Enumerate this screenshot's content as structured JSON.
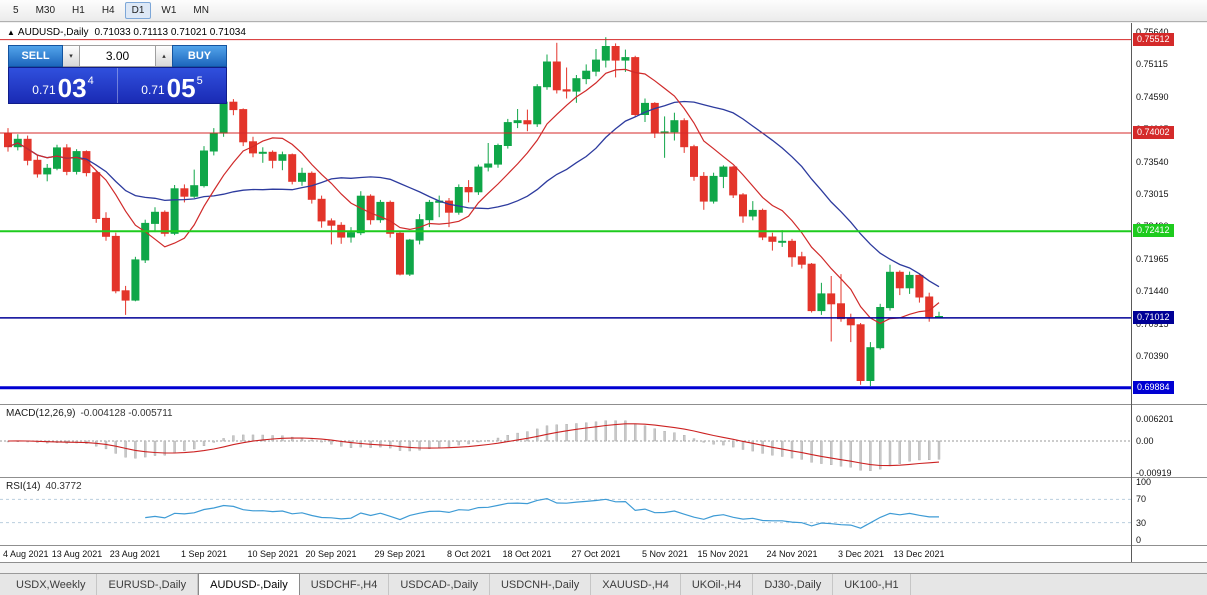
{
  "toolbar": {
    "timeframes": [
      "5",
      "M30",
      "H1",
      "H4",
      "D1",
      "W1",
      "MN"
    ],
    "active": "D1"
  },
  "chart": {
    "symbol_title": "AUDUSD-,Daily",
    "ohlc": "0.71033 0.71113 0.71021 0.71034"
  },
  "icons": {
    "collapse": "▲",
    "step_down": "▾",
    "step_up": "▴"
  },
  "one_click": {
    "sell_label": "SELL",
    "buy_label": "BUY",
    "volume": "3.00",
    "sell_price": {
      "small": "0.71",
      "big": "03",
      "sup": "4"
    },
    "buy_price": {
      "small": "0.71",
      "big": "05",
      "sup": "5"
    }
  },
  "y_axis_labels": [
    "0.75640",
    "0.75115",
    "0.74590",
    "0.74065",
    "0.73540",
    "0.73015",
    "0.72490",
    "0.71965",
    "0.71440",
    "0.70915",
    "0.70390",
    "0.69865"
  ],
  "price_levels": [
    {
      "value": 0.75512,
      "label": "0.75512",
      "color": "#d42a2a",
      "width": 1
    },
    {
      "value": 0.74002,
      "label": "0.74002",
      "color": "#d42a2a",
      "width": 1
    },
    {
      "value": 0.72412,
      "label": "0.72412",
      "color": "#1ecb1e",
      "width": 2
    },
    {
      "value": 0.71012,
      "label": "0.71012",
      "color": "#000096",
      "width": 1.5
    },
    {
      "value": 0.69884,
      "label": "0.69884",
      "color": "#0000d2",
      "width": 3
    }
  ],
  "macd": {
    "name": "MACD(12,26,9)",
    "values": "-0.004128 -0.005711",
    "axis": [
      {
        "label": "0.006201",
        "value": 0.006201
      },
      {
        "label": "0.00",
        "value": 0
      },
      {
        "label": "-0.00919",
        "value": -0.00919
      }
    ]
  },
  "rsi": {
    "name": "RSI(14)",
    "value": "40.3772",
    "axis": [
      {
        "label": "100",
        "value": 100
      },
      {
        "label": "70",
        "value": 70
      },
      {
        "label": "30",
        "value": 30
      },
      {
        "label": "0",
        "value": 0
      }
    ],
    "levels": [
      70,
      30
    ]
  },
  "x_ticks": [
    {
      "label": "4 Aug 2021",
      "index": 0
    },
    {
      "label": "13 Aug 2021",
      "index": 7
    },
    {
      "label": "23 Aug 2021",
      "index": 13
    },
    {
      "label": "1 Sep 2021",
      "index": 20
    },
    {
      "label": "10 Sep 2021",
      "index": 27
    },
    {
      "label": "20 Sep 2021",
      "index": 33
    },
    {
      "label": "29 Sep 2021",
      "index": 40
    },
    {
      "label": "8 Oct 2021",
      "index": 47
    },
    {
      "label": "18 Oct 2021",
      "index": 53
    },
    {
      "label": "27 Oct 2021",
      "index": 60
    },
    {
      "label": "5 Nov 2021",
      "index": 67
    },
    {
      "label": "15 Nov 2021",
      "index": 73
    },
    {
      "label": "24 Nov 2021",
      "index": 80
    },
    {
      "label": "3 Dec 2021",
      "index": 87
    },
    {
      "label": "13 Dec 2021",
      "index": 93
    }
  ],
  "tabs": [
    {
      "label": "USDX,Weekly",
      "active": false
    },
    {
      "label": "EURUSD-,Daily",
      "active": false
    },
    {
      "label": "AUDUSD-,Daily",
      "active": true
    },
    {
      "label": "USDCHF-,H4",
      "active": false
    },
    {
      "label": "USDCAD-,Daily",
      "active": false
    },
    {
      "label": "USDCNH-,Daily",
      "active": false
    },
    {
      "label": "XAUUSD-,H4",
      "active": false
    },
    {
      "label": "UKOil-,H4",
      "active": false
    },
    {
      "label": "DJ30-,Daily",
      "active": false
    },
    {
      "label": "UK100-,H1",
      "active": false
    }
  ],
  "colors": {
    "up": "#0fa648",
    "down": "#e3342a",
    "ma_fast": "#d02a2a",
    "ma_slow": "#2d3b9e",
    "macd_hist": "#c8c8c8",
    "macd_signal": "#cc2222",
    "rsi_line": "#3e9bd5"
  },
  "chart_data": {
    "type": "candlestick",
    "symbol": "AUDUSD",
    "timeframe": "Daily",
    "price_min_visible": 0.6962,
    "price_max_visible": 0.7578,
    "candles": [
      [
        0.74,
        0.7408,
        0.737,
        0.7378
      ],
      [
        0.7378,
        0.7398,
        0.7372,
        0.739
      ],
      [
        0.739,
        0.7396,
        0.7348,
        0.7356
      ],
      [
        0.7356,
        0.7364,
        0.7328,
        0.7334
      ],
      [
        0.7334,
        0.735,
        0.7322,
        0.7343
      ],
      [
        0.7343,
        0.7381,
        0.734,
        0.7376
      ],
      [
        0.7376,
        0.7382,
        0.7332,
        0.7338
      ],
      [
        0.7338,
        0.7374,
        0.7333,
        0.737
      ],
      [
        0.737,
        0.7372,
        0.733,
        0.7336
      ],
      [
        0.7336,
        0.734,
        0.7255,
        0.7262
      ],
      [
        0.7262,
        0.7272,
        0.7226,
        0.7233
      ],
      [
        0.7233,
        0.7239,
        0.7141,
        0.7145
      ],
      [
        0.7145,
        0.7153,
        0.7106,
        0.713
      ],
      [
        0.713,
        0.72,
        0.7128,
        0.7195
      ],
      [
        0.7195,
        0.726,
        0.719,
        0.7254
      ],
      [
        0.7254,
        0.728,
        0.724,
        0.7272
      ],
      [
        0.7272,
        0.7275,
        0.7233,
        0.7238
      ],
      [
        0.7238,
        0.7316,
        0.7235,
        0.731
      ],
      [
        0.731,
        0.7317,
        0.7288,
        0.7298
      ],
      [
        0.7298,
        0.7341,
        0.7295,
        0.7315
      ],
      [
        0.7315,
        0.7379,
        0.7312,
        0.7371
      ],
      [
        0.7371,
        0.7408,
        0.7364,
        0.74
      ],
      [
        0.74,
        0.7478,
        0.7394,
        0.745
      ],
      [
        0.745,
        0.7455,
        0.7429,
        0.7438
      ],
      [
        0.7438,
        0.744,
        0.7379,
        0.7386
      ],
      [
        0.7386,
        0.7394,
        0.7361,
        0.7368
      ],
      [
        0.7368,
        0.7377,
        0.7352,
        0.7369
      ],
      [
        0.7369,
        0.7372,
        0.7343,
        0.7356
      ],
      [
        0.7356,
        0.737,
        0.734,
        0.7365
      ],
      [
        0.7365,
        0.7367,
        0.7317,
        0.7322
      ],
      [
        0.7322,
        0.7344,
        0.7315,
        0.7335
      ],
      [
        0.7335,
        0.7338,
        0.7286,
        0.7293
      ],
      [
        0.7293,
        0.7299,
        0.7247,
        0.7258
      ],
      [
        0.7258,
        0.7262,
        0.722,
        0.7251
      ],
      [
        0.7251,
        0.7256,
        0.7221,
        0.7232
      ],
      [
        0.7232,
        0.7248,
        0.7223,
        0.7239
      ],
      [
        0.7239,
        0.7306,
        0.7235,
        0.7298
      ],
      [
        0.7298,
        0.7301,
        0.7252,
        0.726
      ],
      [
        0.726,
        0.7292,
        0.7255,
        0.7288
      ],
      [
        0.7288,
        0.7291,
        0.7231,
        0.7238
      ],
      [
        0.7238,
        0.7242,
        0.717,
        0.7172
      ],
      [
        0.7172,
        0.7229,
        0.7169,
        0.7227
      ],
      [
        0.7227,
        0.7269,
        0.722,
        0.726
      ],
      [
        0.726,
        0.7292,
        0.7248,
        0.7288
      ],
      [
        0.7288,
        0.7299,
        0.7264,
        0.729
      ],
      [
        0.729,
        0.7295,
        0.7248,
        0.7272
      ],
      [
        0.7272,
        0.7317,
        0.7268,
        0.7312
      ],
      [
        0.7312,
        0.7324,
        0.7288,
        0.7305
      ],
      [
        0.7305,
        0.7349,
        0.73,
        0.7345
      ],
      [
        0.7345,
        0.7384,
        0.7338,
        0.735
      ],
      [
        0.735,
        0.7383,
        0.7344,
        0.738
      ],
      [
        0.738,
        0.7423,
        0.7375,
        0.7417
      ],
      [
        0.7417,
        0.7439,
        0.7408,
        0.742
      ],
      [
        0.742,
        0.7438,
        0.7403,
        0.7415
      ],
      [
        0.7415,
        0.7479,
        0.741,
        0.7475
      ],
      [
        0.7475,
        0.7527,
        0.747,
        0.7515
      ],
      [
        0.7515,
        0.7546,
        0.7464,
        0.747
      ],
      [
        0.747,
        0.7506,
        0.7456,
        0.7468
      ],
      [
        0.7468,
        0.7494,
        0.7449,
        0.7488
      ],
      [
        0.7488,
        0.7511,
        0.7479,
        0.75
      ],
      [
        0.75,
        0.7536,
        0.7492,
        0.7518
      ],
      [
        0.7518,
        0.7555,
        0.7506,
        0.754
      ],
      [
        0.754,
        0.7545,
        0.749,
        0.7518
      ],
      [
        0.7518,
        0.7535,
        0.7499,
        0.7522
      ],
      [
        0.7522,
        0.7525,
        0.7426,
        0.743
      ],
      [
        0.743,
        0.7456,
        0.7418,
        0.7448
      ],
      [
        0.7448,
        0.745,
        0.7392,
        0.74
      ],
      [
        0.74,
        0.7427,
        0.736,
        0.7402
      ],
      [
        0.7402,
        0.7433,
        0.7388,
        0.742
      ],
      [
        0.742,
        0.7424,
        0.7368,
        0.7378
      ],
      [
        0.7378,
        0.7381,
        0.7323,
        0.733
      ],
      [
        0.733,
        0.7337,
        0.7276,
        0.729
      ],
      [
        0.729,
        0.7336,
        0.7286,
        0.733
      ],
      [
        0.733,
        0.7348,
        0.7311,
        0.7345
      ],
      [
        0.7345,
        0.7347,
        0.7295,
        0.73
      ],
      [
        0.73,
        0.7303,
        0.7255,
        0.7266
      ],
      [
        0.7266,
        0.729,
        0.7259,
        0.7275
      ],
      [
        0.7275,
        0.7278,
        0.7227,
        0.7232
      ],
      [
        0.7232,
        0.7239,
        0.721,
        0.7225
      ],
      [
        0.7225,
        0.7243,
        0.7216,
        0.7225
      ],
      [
        0.7225,
        0.7229,
        0.7184,
        0.72
      ],
      [
        0.72,
        0.7208,
        0.7181,
        0.7188
      ],
      [
        0.7188,
        0.719,
        0.711,
        0.7113
      ],
      [
        0.7113,
        0.7158,
        0.7106,
        0.714
      ],
      [
        0.714,
        0.7169,
        0.7063,
        0.7124
      ],
      [
        0.7124,
        0.7172,
        0.7095,
        0.71
      ],
      [
        0.71,
        0.7108,
        0.7062,
        0.709
      ],
      [
        0.709,
        0.7093,
        0.6993,
        0.7
      ],
      [
        0.7,
        0.7062,
        0.6991,
        0.7053
      ],
      [
        0.7053,
        0.7124,
        0.705,
        0.7118
      ],
      [
        0.7118,
        0.7187,
        0.7113,
        0.7175
      ],
      [
        0.7175,
        0.7178,
        0.7138,
        0.715
      ],
      [
        0.715,
        0.7176,
        0.714,
        0.717
      ],
      [
        0.717,
        0.7173,
        0.7126,
        0.7135
      ],
      [
        0.7135,
        0.7142,
        0.7095,
        0.71033
      ],
      [
        0.71033,
        0.71113,
        0.71021,
        0.71034
      ]
    ]
  }
}
